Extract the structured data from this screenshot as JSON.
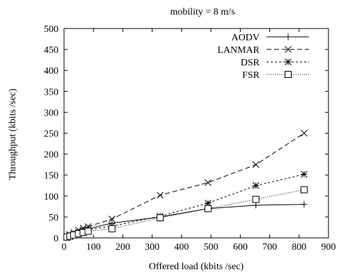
{
  "chart_data": {
    "type": "line",
    "title": "mobility = 8 m/s",
    "xlabel": "Offered load (kbits /sec)",
    "ylabel": "Throughput (kbits /sec)",
    "xlim": [
      0,
      900
    ],
    "ylim": [
      0,
      500
    ],
    "xticks": [
      "0",
      "100",
      "200",
      "300",
      "400",
      "500",
      "600",
      "700",
      "800",
      "900"
    ],
    "yticks": [
      "0",
      "50",
      "100",
      "150",
      "200",
      "250",
      "300",
      "350",
      "400",
      "450",
      "500"
    ],
    "grid": false,
    "legend_position": "top-right",
    "series": [
      {
        "name": "AODV",
        "marker": "plus",
        "dash": "solid",
        "x": [
          10,
          20,
          33,
          49,
          65,
          82,
          163,
          327,
          490,
          653,
          817
        ],
        "y": [
          3,
          6,
          10,
          14,
          18,
          22,
          35,
          50,
          70,
          78,
          80
        ]
      },
      {
        "name": "LANMAR",
        "marker": "cross",
        "dash": "dashed",
        "x": [
          10,
          20,
          33,
          49,
          65,
          82,
          163,
          327,
          490,
          653,
          817
        ],
        "y": [
          4,
          8,
          13,
          19,
          23,
          27,
          45,
          102,
          132,
          175,
          250
        ]
      },
      {
        "name": "DSR",
        "marker": "star",
        "dash": "short-dashed",
        "x": [
          10,
          20,
          33,
          49,
          65,
          82,
          163,
          327,
          490,
          653,
          817
        ],
        "y": [
          3,
          6,
          9,
          13,
          17,
          20,
          28,
          52,
          83,
          125,
          152
        ]
      },
      {
        "name": "FSR",
        "marker": "box",
        "dash": "dotted",
        "x": [
          10,
          20,
          33,
          49,
          65,
          82,
          163,
          327,
          490,
          653,
          817
        ],
        "y": [
          2,
          4,
          7,
          10,
          13,
          16,
          22,
          48,
          70,
          92,
          115
        ]
      }
    ]
  }
}
